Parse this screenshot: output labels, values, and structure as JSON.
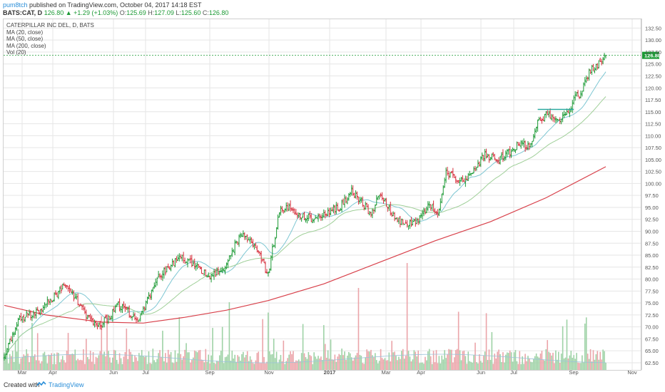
{
  "header": {
    "author": "pum8tch",
    "published_text": "published on TradingView.com, October 04, 2017 14:18 EST",
    "symbol": "BATS:CAT, D",
    "last": "126.80",
    "change": "+1.29 (+1.03%)",
    "open_label": "O:",
    "open": "125.69",
    "high_label": "H:",
    "high": "127.09",
    "low_label": "L:",
    "low": "125.60",
    "close_label": "C:",
    "close": "126.80"
  },
  "legend": {
    "title": "CATERPILLAR INC DEL, D, BATS",
    "ma20": "MA (20, close)",
    "ma50": "MA (50, close)",
    "ma200": "MA (200, close)",
    "vol": "Vol (20)"
  },
  "footer": {
    "created": "Created with",
    "brand": "TradingView"
  },
  "colors": {
    "up": "#1c9a35",
    "down": "#d62f3c",
    "ma20": "#7dc6d2",
    "ma50": "#9fcf98",
    "ma200": "#d8404a",
    "price_line": "#1c9a35",
    "grid": "#e6e6e6",
    "vol_up": "#9ed2a6",
    "vol_down": "#eba4a9"
  },
  "chart_data": {
    "type": "ohlc",
    "ylim": [
      61.0,
      134.5
    ],
    "y_ticks": [
      "132.50",
      "130.00",
      "127.50",
      "125.00",
      "122.50",
      "120.00",
      "117.50",
      "115.00",
      "112.50",
      "110.00",
      "107.50",
      "105.00",
      "102.50",
      "100.00",
      "97.50",
      "95.00",
      "92.50",
      "90.00",
      "87.50",
      "85.00",
      "82.50",
      "80.00",
      "77.50",
      "75.00",
      "72.50",
      "70.00",
      "67.50",
      "65.00",
      "62.50"
    ],
    "x_ticks": [
      "Mar",
      "Apr",
      "Jun",
      "Jul",
      "Sep",
      "Nov",
      "2017",
      "Mar",
      "Apr",
      "Jun",
      "Jul",
      "Sep",
      "Nov"
    ],
    "x_tick_bold": "2017",
    "price_label": "126.80",
    "last_price": 126.8,
    "resistance": {
      "value": 115.5,
      "from_label": "Jul 2017",
      "to_label": "Sep 2017"
    },
    "price_path": [
      [
        0,
        63.5
      ],
      [
        10,
        71.5
      ],
      [
        22,
        73.0
      ],
      [
        35,
        76.0
      ],
      [
        43,
        79.0
      ],
      [
        52,
        75.5
      ],
      [
        60,
        72.0
      ],
      [
        66,
        70.0
      ],
      [
        74,
        71.5
      ],
      [
        82,
        74.5
      ],
      [
        90,
        73.0
      ],
      [
        95,
        71.0
      ],
      [
        103,
        75.5
      ],
      [
        110,
        80.0
      ],
      [
        118,
        82.5
      ],
      [
        128,
        84.5
      ],
      [
        138,
        82.5
      ],
      [
        148,
        80.5
      ],
      [
        158,
        82.5
      ],
      [
        168,
        88.0
      ],
      [
        172,
        89.5
      ],
      [
        180,
        87.0
      ],
      [
        186,
        83.5
      ],
      [
        190,
        81.0
      ],
      [
        193,
        86.0
      ],
      [
        198,
        94.0
      ],
      [
        205,
        95.5
      ],
      [
        212,
        93.5
      ],
      [
        222,
        92.5
      ],
      [
        232,
        94.0
      ],
      [
        242,
        95.0
      ],
      [
        250,
        98.5
      ],
      [
        258,
        96.0
      ],
      [
        264,
        93.0
      ],
      [
        270,
        98.0
      ],
      [
        278,
        94.0
      ],
      [
        284,
        92.0
      ],
      [
        292,
        91.5
      ],
      [
        298,
        92.5
      ],
      [
        306,
        95.5
      ],
      [
        312,
        93.5
      ],
      [
        318,
        103.0
      ],
      [
        322,
        101.5
      ],
      [
        326,
        100.0
      ],
      [
        336,
        102.0
      ],
      [
        346,
        106.0
      ],
      [
        356,
        105.0
      ],
      [
        365,
        107.0
      ],
      [
        372,
        108.5
      ],
      [
        378,
        107.5
      ],
      [
        384,
        112.5
      ],
      [
        390,
        114.5
      ],
      [
        398,
        113.5
      ],
      [
        404,
        114.0
      ],
      [
        410,
        117.5
      ],
      [
        416,
        119.5
      ],
      [
        422,
        124.0
      ],
      [
        428,
        125.0
      ],
      [
        433,
        126.8
      ]
    ],
    "ma200_path": [
      [
        0,
        74.5
      ],
      [
        30,
        72.5
      ],
      [
        70,
        71.0
      ],
      [
        100,
        70.8
      ],
      [
        130,
        72.0
      ],
      [
        160,
        73.5
      ],
      [
        190,
        75.5
      ],
      [
        230,
        79.0
      ],
      [
        270,
        83.5
      ],
      [
        310,
        88.0
      ],
      [
        350,
        92.0
      ],
      [
        390,
        97.0
      ],
      [
        433,
        103.5
      ]
    ],
    "volume_ylim": [
      0,
      1
    ]
  }
}
